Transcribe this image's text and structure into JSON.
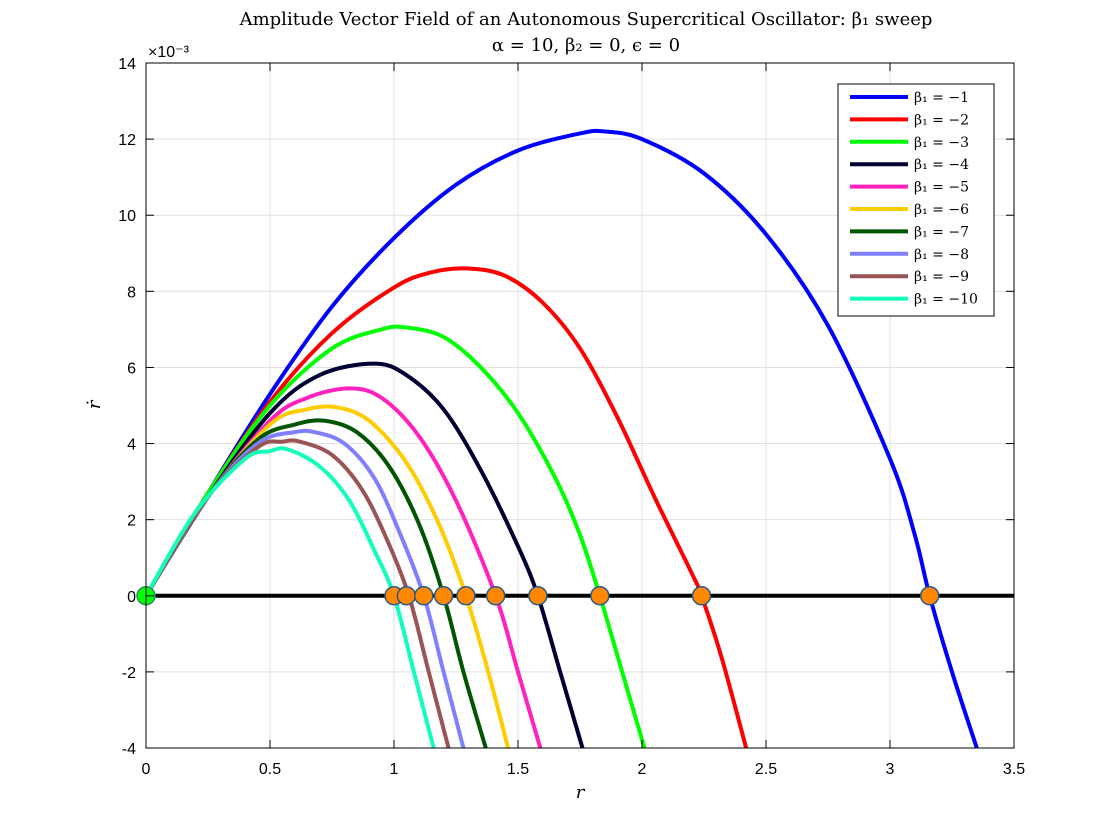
{
  "chart_data": {
    "type": "line",
    "title": "Amplitude Vector Field of an Autonomous Supercritical Oscillator: β₁ sweep",
    "subtitle": "α = 10, β₂ = 0, ϵ = 0",
    "xlabel": "r",
    "ylabel": "ṙ",
    "y_exponent_label": "×10⁻³",
    "xlim": [
      0,
      3.5
    ],
    "ylim": [
      -4,
      14
    ],
    "xticks": [
      0,
      0.5,
      1,
      1.5,
      2,
      2.5,
      3,
      3.5
    ],
    "xtick_labels": [
      "0",
      "0.5",
      "1",
      "1.5",
      "2",
      "2.5",
      "3",
      "3.5"
    ],
    "yticks": [
      -4,
      -2,
      0,
      2,
      4,
      6,
      8,
      10,
      12,
      14
    ],
    "ytick_labels": [
      "-4",
      "-2",
      "0",
      "2",
      "4",
      "6",
      "8",
      "10",
      "12",
      "14"
    ],
    "grid": true,
    "legend_position": "top-right",
    "series": [
      {
        "name": "β₁ = −1",
        "color": "#0000ff",
        "x": [
          0,
          0.25,
          0.5,
          0.75,
          1.0,
          1.25,
          1.5,
          1.75,
          1.85,
          2.0,
          2.25,
          2.5,
          2.75,
          3.0,
          3.1,
          3.16,
          3.25,
          3.35
        ],
        "y": [
          0,
          2.7,
          5.3,
          7.6,
          9.4,
          10.8,
          11.7,
          12.15,
          12.2,
          12.0,
          11.1,
          9.5,
          7.1,
          3.6,
          1.6,
          0,
          -2.0,
          -4.0
        ]
      },
      {
        "name": "β₁ = −2",
        "color": "#ff0000",
        "x": [
          0,
          0.25,
          0.5,
          0.75,
          1.0,
          1.15,
          1.3,
          1.45,
          1.6,
          1.75,
          1.9,
          2.05,
          2.2,
          2.24,
          2.32,
          2.42
        ],
        "y": [
          0,
          2.7,
          5.1,
          6.9,
          8.1,
          8.5,
          8.6,
          8.4,
          7.7,
          6.5,
          4.7,
          2.6,
          0.6,
          0,
          -1.6,
          -4.0
        ]
      },
      {
        "name": "β₁ = −3",
        "color": "#00ff00",
        "x": [
          0,
          0.25,
          0.5,
          0.75,
          0.95,
          1.05,
          1.2,
          1.35,
          1.5,
          1.65,
          1.75,
          1.83,
          1.92,
          2.01
        ],
        "y": [
          0,
          2.7,
          5.0,
          6.5,
          7.0,
          7.05,
          6.8,
          6.0,
          4.8,
          3.1,
          1.6,
          0,
          -2.0,
          -4.0
        ]
      },
      {
        "name": "β₁ = −4",
        "color": "#000033",
        "x": [
          0,
          0.25,
          0.5,
          0.7,
          0.92,
          1.05,
          1.2,
          1.35,
          1.5,
          1.58,
          1.67,
          1.76
        ],
        "y": [
          0,
          2.6,
          4.8,
          5.8,
          6.1,
          5.8,
          4.9,
          3.3,
          1.3,
          0,
          -2.0,
          -4.0
        ]
      },
      {
        "name": "β₁ = −5",
        "color": "#ff22bb",
        "x": [
          0,
          0.25,
          0.5,
          0.65,
          0.82,
          0.95,
          1.1,
          1.25,
          1.41,
          1.5,
          1.59
        ],
        "y": [
          0,
          2.6,
          4.6,
          5.2,
          5.45,
          5.2,
          4.2,
          2.5,
          0,
          -2.0,
          -4.0
        ]
      },
      {
        "name": "β₁ = −6",
        "color": "#ffcc00",
        "x": [
          0,
          0.25,
          0.5,
          0.65,
          0.77,
          0.9,
          1.05,
          1.18,
          1.29,
          1.38,
          1.46
        ],
        "y": [
          0,
          2.6,
          4.5,
          4.9,
          4.95,
          4.6,
          3.5,
          1.9,
          0,
          -2.0,
          -4.0
        ]
      },
      {
        "name": "β₁ = −7",
        "color": "#005500",
        "x": [
          0,
          0.25,
          0.45,
          0.6,
          0.72,
          0.85,
          0.98,
          1.1,
          1.2,
          1.28,
          1.37
        ],
        "y": [
          0,
          2.6,
          4.1,
          4.5,
          4.6,
          4.3,
          3.4,
          1.9,
          0,
          -2.0,
          -4.0
        ]
      },
      {
        "name": "β₁ = −8",
        "color": "#8080ff",
        "x": [
          0,
          0.25,
          0.45,
          0.6,
          0.68,
          0.8,
          0.92,
          1.02,
          1.12,
          1.2,
          1.28
        ],
        "y": [
          0,
          2.6,
          4.0,
          4.3,
          4.3,
          4.0,
          3.1,
          1.7,
          0,
          -2.0,
          -4.0
        ]
      },
      {
        "name": "β₁ = −9",
        "color": "#995555",
        "x": [
          0,
          0.25,
          0.45,
          0.55,
          0.62,
          0.75,
          0.87,
          0.97,
          1.06,
          1.14,
          1.22
        ],
        "y": [
          0,
          2.6,
          3.9,
          4.05,
          4.05,
          3.7,
          2.8,
          1.5,
          0,
          -2.0,
          -4.0
        ]
      },
      {
        "name": "β₁ = −10",
        "color": "#11ffbb",
        "x": [
          0,
          0.2,
          0.4,
          0.5,
          0.57,
          0.7,
          0.82,
          0.92,
          1.0,
          1.08,
          1.16
        ],
        "y": [
          0,
          2.2,
          3.6,
          3.8,
          3.85,
          3.4,
          2.5,
          1.2,
          0,
          -2.0,
          -4.0
        ]
      }
    ],
    "zero_line": {
      "color": "#000000",
      "y": 0
    },
    "equilibria": {
      "origin": {
        "x": 0,
        "y": 0,
        "color": "#00ff00"
      },
      "stable_points": {
        "fill": "#ff8800",
        "x": [
          1.0,
          1.05,
          1.12,
          1.2,
          1.29,
          1.41,
          1.58,
          1.83,
          2.24,
          3.16
        ]
      }
    }
  }
}
